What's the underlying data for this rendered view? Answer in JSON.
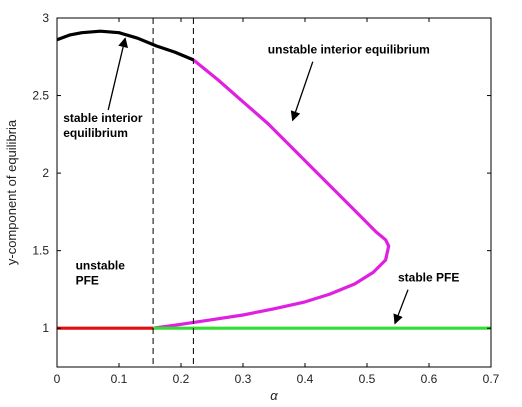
{
  "chart_data": {
    "type": "line",
    "title": "",
    "xlabel": "α",
    "ylabel": "y-component of equilibria",
    "xlim": [
      0,
      0.7
    ],
    "ylim": [
      0.75,
      3
    ],
    "xticks": [
      "0",
      "0.1",
      "0.2",
      "0.3",
      "0.4",
      "0.5",
      "0.6",
      "0.7"
    ],
    "yticks": [
      "1",
      "1.5",
      "2",
      "2.5",
      "3"
    ],
    "grid": false,
    "legend": "none",
    "series": [
      {
        "color": "#000000",
        "points": [
          [
            0,
            2.86
          ],
          [
            0.02,
            2.89
          ],
          [
            0.04,
            2.905
          ],
          [
            0.07,
            2.915
          ],
          [
            0.1,
            2.905
          ],
          [
            0.13,
            2.87
          ],
          [
            0.16,
            2.82
          ],
          [
            0.19,
            2.78
          ],
          [
            0.22,
            2.73
          ]
        ]
      },
      {
        "color": "#e020e0",
        "points": [
          [
            0.22,
            2.73
          ],
          [
            0.26,
            2.6
          ],
          [
            0.3,
            2.46
          ],
          [
            0.34,
            2.32
          ],
          [
            0.38,
            2.16
          ],
          [
            0.42,
            2.0
          ],
          [
            0.46,
            1.84
          ],
          [
            0.49,
            1.72
          ],
          [
            0.515,
            1.62
          ],
          [
            0.53,
            1.57
          ],
          [
            0.535,
            1.53
          ],
          [
            0.53,
            1.44
          ],
          [
            0.51,
            1.36
          ],
          [
            0.48,
            1.285
          ],
          [
            0.44,
            1.22
          ],
          [
            0.4,
            1.17
          ],
          [
            0.35,
            1.125
          ],
          [
            0.3,
            1.085
          ],
          [
            0.25,
            1.055
          ],
          [
            0.2,
            1.025
          ],
          [
            0.155,
            1.0
          ]
        ]
      },
      {
        "color": "#dd1111",
        "points": [
          [
            0,
            1.0
          ],
          [
            0.155,
            1.0
          ]
        ]
      },
      {
        "color": "#33dd33",
        "points": [
          [
            0.155,
            1.0
          ],
          [
            0.7,
            1.0
          ]
        ]
      }
    ],
    "vlines": [
      0.155,
      0.22
    ],
    "annotations": [
      {
        "lines": [
          "stable interior",
          "equilibrium"
        ],
        "text_at": [
          0.01,
          2.33
        ],
        "arrow_to": [
          0.11,
          2.87
        ]
      },
      {
        "lines": [
          "unstable interior equilibrium"
        ],
        "text_at": [
          0.34,
          2.77
        ],
        "arrow_to": [
          0.38,
          2.34
        ]
      },
      {
        "lines": [
          "unstable",
          "PFE"
        ],
        "text_at": [
          0.03,
          1.38
        ],
        "arrow_to": null
      },
      {
        "lines": [
          "stable PFE"
        ],
        "text_at": [
          0.55,
          1.3
        ],
        "arrow_to": [
          0.545,
          1.03
        ]
      }
    ]
  }
}
